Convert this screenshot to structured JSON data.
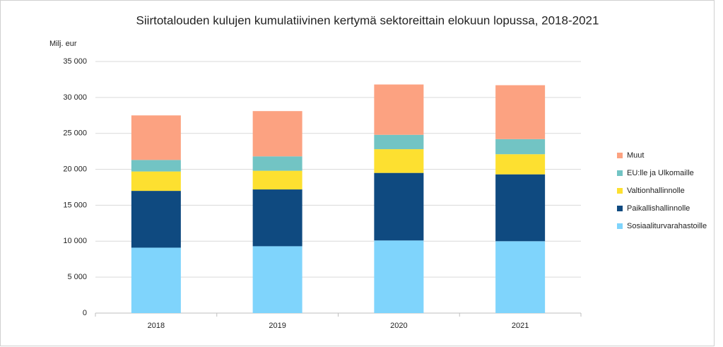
{
  "chart_data": {
    "type": "stacked_bar",
    "title": "Siirtotalouden kulujen kumulatiivinen kertymä sektoreittain elokuun lopussa, 2018-2021",
    "y_label": "Milj. eur",
    "categories": [
      "2018",
      "2019",
      "2020",
      "2021"
    ],
    "series": [
      {
        "name": "Sosiaaliturvarahastoille",
        "color": "#7fd4fc",
        "values": [
          9100,
          9300,
          10100,
          10000
        ]
      },
      {
        "name": "Paikallishallinnolle",
        "color": "#0f4a80",
        "values": [
          7900,
          7900,
          9400,
          9300
        ]
      },
      {
        "name": "Valtionhallinnolle",
        "color": "#fde030",
        "values": [
          2700,
          2600,
          3300,
          2800
        ]
      },
      {
        "name": "EU:lle ja Ulkomaille",
        "color": "#72c4c4",
        "values": [
          1600,
          2000,
          2000,
          2100
        ]
      },
      {
        "name": "Muut",
        "color": "#fca281",
        "values": [
          6200,
          6300,
          7000,
          7500
        ]
      }
    ],
    "ylim": [
      0,
      35000
    ],
    "yticks": [
      0,
      {
        "value": 5000,
        "label": "5 000"
      },
      {
        "value": 10000,
        "label": "10 000"
      },
      {
        "value": 15000,
        "label": "15 000"
      },
      {
        "value": 20000,
        "label": "20 000"
      },
      {
        "value": 25000,
        "label": "25 000"
      },
      {
        "value": 30000,
        "label": "30 000"
      },
      {
        "value": 35000,
        "label": "35 000"
      }
    ],
    "grid": true,
    "legend": "right"
  }
}
